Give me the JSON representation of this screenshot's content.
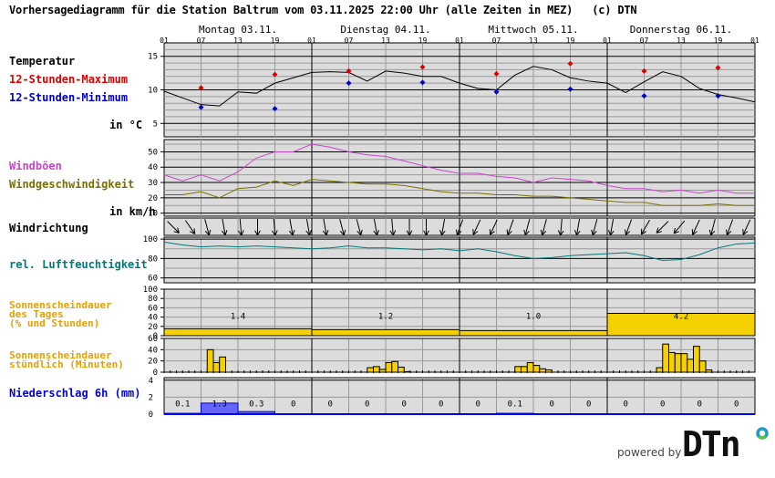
{
  "header": {
    "title": "Vorhersagediagramm für die Station Baltrum vom 03.11.2025 22:00 Uhr (alle Zeiten in MEZ)   (c) DTN"
  },
  "days": [
    "Montag 03.11.",
    "Dienstag 04.11.",
    "Mittwoch 05.11.",
    "Donnerstag 06.11."
  ],
  "hour_ticks": [
    "01",
    "07",
    "13",
    "19",
    "01",
    "07",
    "13",
    "19",
    "01",
    "07",
    "13",
    "19",
    "01",
    "07",
    "13",
    "19",
    "01"
  ],
  "labels": {
    "temperature": "Temperatur",
    "max12": "12-Stunden-Maximum",
    "min12": "12-Stunden-Minimum",
    "temp_unit": "in °C",
    "gusts": "Windböen",
    "wind_speed": "Windgeschwindigkeit",
    "wind_unit": "in km/h",
    "wind_direction": "Windrichtung",
    "humidity": "rel. Luftfeuchtigkeit",
    "sun_daily_1": "Sonnenscheindauer",
    "sun_daily_2": "des Tages",
    "sun_daily_3": "(% und Stunden)",
    "sun_hourly_1": "Sonnenscheindauer",
    "sun_hourly_2": "stündlich (Minuten)",
    "precip": "Niederschlag 6h (mm)"
  },
  "colors": {
    "temperature": "#000000",
    "max": "#dd0000",
    "min": "#0000cc",
    "gusts": "#cc44cc",
    "wind_speed": "#7a7000",
    "humidity": "#007a7a",
    "sunshine": "#f5d000",
    "sun_label": "#e6a000",
    "precip": "#6666ff",
    "precip_label": "#0000dd",
    "plot_bg": "#dcdcdc"
  },
  "footer": {
    "powered_by": "powered by",
    "logo": "DTN"
  },
  "chart_data": [
    {
      "type": "line",
      "title": "Temperatur",
      "ylabel": "in °C",
      "ylim": [
        3,
        17
      ],
      "yticks": [
        5,
        10,
        15
      ],
      "x_hours": [
        0,
        3,
        6,
        9,
        12,
        15,
        18,
        21,
        24,
        27,
        30,
        33,
        36,
        39,
        42,
        45,
        48,
        51,
        54,
        57,
        60,
        63,
        66,
        69,
        72,
        75,
        78,
        81,
        84,
        87,
        90,
        93,
        96
      ],
      "series": [
        {
          "name": "Temperatur",
          "values": [
            9.8,
            8.8,
            7.8,
            7.6,
            9.7,
            9.5,
            11.0,
            11.8,
            12.6,
            12.7,
            12.6,
            11.3,
            12.8,
            12.5,
            12.0,
            12.0,
            11.0,
            10.2,
            10.0,
            12.2,
            13.5,
            13.0,
            11.8,
            11.3,
            11.0,
            9.6,
            11.2,
            12.7,
            12.0,
            10.2,
            9.3,
            8.8,
            8.2
          ]
        }
      ],
      "max12": [
        {
          "hour": 6,
          "value": 10.3
        },
        {
          "hour": 18,
          "value": 12.3
        },
        {
          "hour": 30,
          "value": 12.8
        },
        {
          "hour": 42,
          "value": 13.4
        },
        {
          "hour": 54,
          "value": 12.4
        },
        {
          "hour": 66,
          "value": 13.9
        },
        {
          "hour": 78,
          "value": 12.8
        },
        {
          "hour": 90,
          "value": 13.3
        }
      ],
      "min12": [
        {
          "hour": 6,
          "value": 7.4
        },
        {
          "hour": 18,
          "value": 7.2
        },
        {
          "hour": 30,
          "value": 11.0
        },
        {
          "hour": 42,
          "value": 11.1
        },
        {
          "hour": 54,
          "value": 9.7
        },
        {
          "hour": 66,
          "value": 10.1
        },
        {
          "hour": 78,
          "value": 9.1
        },
        {
          "hour": 90,
          "value": 9.1
        }
      ]
    },
    {
      "type": "line",
      "title": "Wind",
      "ylabel": "in km/h",
      "ylim": [
        8,
        58
      ],
      "yticks": [
        10,
        20,
        30,
        40,
        50
      ],
      "x_hours": [
        0,
        3,
        6,
        9,
        12,
        15,
        18,
        21,
        24,
        27,
        30,
        33,
        36,
        39,
        42,
        45,
        48,
        51,
        54,
        57,
        60,
        63,
        66,
        69,
        72,
        75,
        78,
        81,
        84,
        87,
        90,
        93,
        96
      ],
      "series": [
        {
          "name": "Windböen",
          "values": [
            35,
            31,
            35,
            31,
            37,
            46,
            50,
            50,
            55,
            53,
            50,
            48,
            47,
            44,
            41,
            38,
            36,
            36,
            34,
            33,
            30,
            33,
            32,
            31,
            28,
            26,
            26,
            24,
            25,
            23,
            25,
            23,
            23
          ]
        },
        {
          "name": "Windgeschwindigkeit",
          "values": [
            22,
            22,
            24,
            20,
            26,
            27,
            31,
            28,
            32,
            31,
            30,
            29,
            29,
            28,
            26,
            24,
            23,
            23,
            22,
            22,
            21,
            21,
            20,
            19,
            18,
            17,
            17,
            15,
            15,
            15,
            16,
            15,
            15
          ]
        }
      ]
    },
    {
      "type": "line",
      "title": "rel. Luftfeuchtigkeit",
      "ylim": [
        55,
        102
      ],
      "yticks": [
        60,
        80,
        100
      ],
      "x_hours": [
        0,
        3,
        6,
        9,
        12,
        15,
        18,
        21,
        24,
        27,
        30,
        33,
        36,
        39,
        42,
        45,
        48,
        51,
        54,
        57,
        60,
        63,
        66,
        69,
        72,
        75,
        78,
        81,
        84,
        87,
        90,
        93,
        96
      ],
      "series": [
        {
          "name": "rel. Luftfeuchtigkeit",
          "values": [
            97,
            94,
            92,
            93,
            92,
            93,
            92,
            91,
            90,
            91,
            93,
            91,
            91,
            90,
            89,
            90,
            88,
            90,
            87,
            83,
            80,
            81,
            83,
            84,
            85,
            86,
            83,
            78,
            79,
            84,
            91,
            95,
            96
          ]
        }
      ]
    },
    {
      "type": "bar",
      "title": "Sonnenscheindauer des Tages (% und Stunden)",
      "ylim": [
        0,
        100
      ],
      "yticks": [
        0,
        20,
        40,
        60,
        80,
        100
      ],
      "categories": [
        "Montag 03.11.",
        "Dienstag 04.11.",
        "Mittwoch 05.11.",
        "Donnerstag 06.11."
      ],
      "values_percent": [
        15,
        13,
        11,
        48
      ],
      "values_hours": [
        "1.4",
        "1.2",
        "1.0",
        "4.2"
      ]
    },
    {
      "type": "bar",
      "title": "Sonnenscheindauer stündlich (Minuten)",
      "ylim": [
        0,
        60
      ],
      "yticks": [
        0,
        20,
        40,
        60
      ],
      "bars": [
        {
          "hour": 7,
          "value": 40
        },
        {
          "hour": 8,
          "value": 17
        },
        {
          "hour": 9,
          "value": 27
        },
        {
          "hour": 33,
          "value": 8
        },
        {
          "hour": 34,
          "value": 10
        },
        {
          "hour": 35,
          "value": 5
        },
        {
          "hour": 36,
          "value": 17
        },
        {
          "hour": 37,
          "value": 19
        },
        {
          "hour": 38,
          "value": 9
        },
        {
          "hour": 39,
          "value": 1
        },
        {
          "hour": 57,
          "value": 10
        },
        {
          "hour": 58,
          "value": 10
        },
        {
          "hour": 59,
          "value": 17
        },
        {
          "hour": 60,
          "value": 12
        },
        {
          "hour": 61,
          "value": 6
        },
        {
          "hour": 62,
          "value": 4
        },
        {
          "hour": 80,
          "value": 8
        },
        {
          "hour": 81,
          "value": 50
        },
        {
          "hour": 82,
          "value": 35
        },
        {
          "hour": 83,
          "value": 33
        },
        {
          "hour": 84,
          "value": 33
        },
        {
          "hour": 85,
          "value": 23
        },
        {
          "hour": 86,
          "value": 46
        },
        {
          "hour": 87,
          "value": 20
        },
        {
          "hour": 88,
          "value": 4
        }
      ]
    },
    {
      "type": "bar",
      "title": "Niederschlag 6h (mm)",
      "ylim": [
        0,
        4.3
      ],
      "yticks": [
        0,
        2,
        4
      ],
      "categories": [
        "01-07",
        "07-13",
        "13-19",
        "19-01",
        "01-07",
        "07-13",
        "13-19",
        "19-01",
        "01-07",
        "07-13",
        "13-19",
        "19-01",
        "01-07",
        "07-13",
        "13-19",
        "19-01"
      ],
      "values": [
        0.1,
        1.3,
        0.3,
        0,
        0,
        0,
        0,
        0,
        0,
        0.1,
        0,
        0,
        0,
        0,
        0,
        0
      ],
      "labels": [
        "0.1",
        "1.3",
        "0.3",
        "0",
        "0",
        "0",
        "0",
        "0",
        "0",
        "0.1",
        "0",
        "0",
        "0",
        "0",
        "0",
        "0"
      ]
    },
    {
      "type": "table",
      "title": "Windrichtung",
      "directions_deg": [
        225,
        215,
        195,
        190,
        185,
        180,
        185,
        190,
        190,
        190,
        195,
        195,
        190,
        185,
        180,
        180,
        170,
        160,
        155,
        155,
        160,
        165,
        165,
        175,
        170,
        165,
        170,
        160,
        150,
        135,
        140,
        155,
        165,
        160,
        155
      ]
    }
  ]
}
